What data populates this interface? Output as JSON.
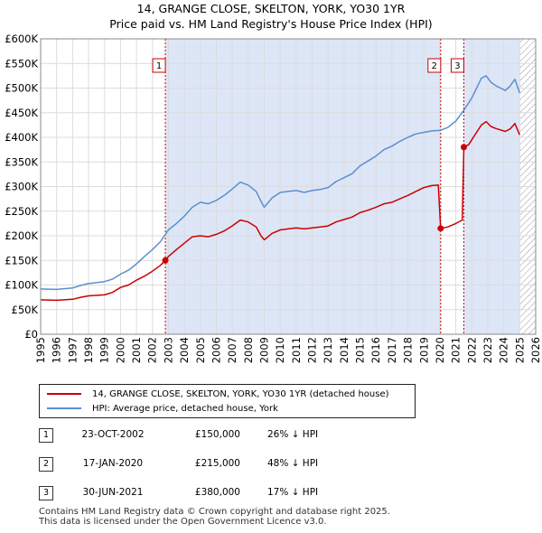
{
  "header": {
    "title": "14, GRANGE CLOSE, SKELTON, YORK, YO30 1YR",
    "subtitle": "Price paid vs. HM Land Registry's House Price Index (HPI)"
  },
  "colors": {
    "price_line": "#cc0000",
    "hpi_line": "#5b8fd0",
    "shade": "#dde6f7",
    "vline": "#cc0000"
  },
  "chart_data": {
    "type": "line",
    "title": "14, GRANGE CLOSE, SKELTON, YORK, YO30 1YR",
    "subtitle": "Price paid vs. HM Land Registry's House Price Index (HPI)",
    "xlim": [
      1995,
      2026
    ],
    "ylim": [
      0,
      600000
    ],
    "x_ticks": [
      "1995",
      "1996",
      "1997",
      "1998",
      "1999",
      "2000",
      "2001",
      "2002",
      "2003",
      "2004",
      "2005",
      "2006",
      "2007",
      "2008",
      "2009",
      "2010",
      "2011",
      "2012",
      "2013",
      "2014",
      "2015",
      "2016",
      "2017",
      "2018",
      "2019",
      "2020",
      "2021",
      "2022",
      "2023",
      "2024",
      "2025",
      "2026"
    ],
    "y_ticks": [
      {
        "value": 0,
        "label": "£0"
      },
      {
        "value": 50000,
        "label": "£50K"
      },
      {
        "value": 100000,
        "label": "£100K"
      },
      {
        "value": 150000,
        "label": "£150K"
      },
      {
        "value": 200000,
        "label": "£200K"
      },
      {
        "value": 250000,
        "label": "£250K"
      },
      {
        "value": 300000,
        "label": "£300K"
      },
      {
        "value": 350000,
        "label": "£350K"
      },
      {
        "value": 400000,
        "label": "£400K"
      },
      {
        "value": 450000,
        "label": "£450K"
      },
      {
        "value": 500000,
        "label": "£500K"
      },
      {
        "value": 550000,
        "label": "£550K"
      },
      {
        "value": 600000,
        "label": "£600K"
      }
    ],
    "shaded_ranges": [
      [
        2002.81,
        2020.05
      ],
      [
        2021.5,
        2025.0
      ]
    ],
    "hatched_range": [
      2025.0,
      2026.0
    ],
    "series": [
      {
        "name": "14, GRANGE CLOSE, SKELTON, YORK, YO30 1YR (detached house)",
        "color": "#cc0000",
        "points": [
          [
            1995.0,
            70000
          ],
          [
            1996.0,
            69000
          ],
          [
            1997.0,
            71000
          ],
          [
            1997.5,
            75000
          ],
          [
            1998.0,
            78000
          ],
          [
            1999.0,
            80000
          ],
          [
            1999.5,
            85000
          ],
          [
            2000.0,
            95000
          ],
          [
            2000.5,
            100000
          ],
          [
            2001.0,
            110000
          ],
          [
            2001.5,
            118000
          ],
          [
            2002.0,
            128000
          ],
          [
            2002.5,
            140000
          ],
          [
            2002.81,
            150000
          ],
          [
            2003.0,
            158000
          ],
          [
            2003.5,
            172000
          ],
          [
            2004.0,
            185000
          ],
          [
            2004.5,
            198000
          ],
          [
            2005.0,
            200000
          ],
          [
            2005.5,
            198000
          ],
          [
            2006.0,
            203000
          ],
          [
            2006.5,
            210000
          ],
          [
            2007.0,
            220000
          ],
          [
            2007.5,
            232000
          ],
          [
            2008.0,
            228000
          ],
          [
            2008.5,
            218000
          ],
          [
            2008.8,
            200000
          ],
          [
            2009.0,
            192000
          ],
          [
            2009.5,
            205000
          ],
          [
            2010.0,
            212000
          ],
          [
            2010.5,
            214000
          ],
          [
            2011.0,
            216000
          ],
          [
            2011.5,
            214000
          ],
          [
            2012.0,
            216000
          ],
          [
            2012.5,
            218000
          ],
          [
            2013.0,
            220000
          ],
          [
            2013.5,
            228000
          ],
          [
            2014.0,
            233000
          ],
          [
            2014.5,
            238000
          ],
          [
            2015.0,
            247000
          ],
          [
            2015.5,
            252000
          ],
          [
            2016.0,
            258000
          ],
          [
            2016.5,
            265000
          ],
          [
            2017.0,
            268000
          ],
          [
            2017.5,
            275000
          ],
          [
            2018.0,
            282000
          ],
          [
            2018.5,
            290000
          ],
          [
            2019.0,
            298000
          ],
          [
            2019.5,
            302000
          ],
          [
            2019.9,
            303000
          ],
          [
            2020.05,
            215000
          ],
          [
            2020.5,
            218000
          ],
          [
            2021.0,
            225000
          ],
          [
            2021.4,
            232000
          ],
          [
            2021.5,
            380000
          ],
          [
            2021.8,
            385000
          ],
          [
            2022.0,
            395000
          ],
          [
            2022.3,
            410000
          ],
          [
            2022.6,
            425000
          ],
          [
            2022.9,
            432000
          ],
          [
            2023.2,
            422000
          ],
          [
            2023.5,
            418000
          ],
          [
            2023.8,
            415000
          ],
          [
            2024.1,
            412000
          ],
          [
            2024.4,
            417000
          ],
          [
            2024.7,
            428000
          ],
          [
            2025.0,
            405000
          ]
        ]
      },
      {
        "name": "HPI: Average price, detached house, York",
        "color": "#5b8fd0",
        "points": [
          [
            1995.0,
            92000
          ],
          [
            1996.0,
            91000
          ],
          [
            1997.0,
            94000
          ],
          [
            1997.5,
            99000
          ],
          [
            1998.0,
            103000
          ],
          [
            1999.0,
            107000
          ],
          [
            1999.5,
            112000
          ],
          [
            2000.0,
            122000
          ],
          [
            2000.5,
            130000
          ],
          [
            2001.0,
            143000
          ],
          [
            2001.5,
            158000
          ],
          [
            2002.0,
            172000
          ],
          [
            2002.5,
            188000
          ],
          [
            2002.81,
            203000
          ],
          [
            2003.0,
            212000
          ],
          [
            2003.5,
            225000
          ],
          [
            2004.0,
            240000
          ],
          [
            2004.5,
            258000
          ],
          [
            2005.0,
            268000
          ],
          [
            2005.5,
            265000
          ],
          [
            2006.0,
            272000
          ],
          [
            2006.5,
            282000
          ],
          [
            2007.0,
            295000
          ],
          [
            2007.5,
            309000
          ],
          [
            2008.0,
            303000
          ],
          [
            2008.5,
            290000
          ],
          [
            2008.8,
            270000
          ],
          [
            2009.0,
            258000
          ],
          [
            2009.5,
            277000
          ],
          [
            2010.0,
            288000
          ],
          [
            2010.5,
            290000
          ],
          [
            2011.0,
            292000
          ],
          [
            2011.5,
            288000
          ],
          [
            2012.0,
            292000
          ],
          [
            2012.5,
            294000
          ],
          [
            2013.0,
            298000
          ],
          [
            2013.5,
            310000
          ],
          [
            2014.0,
            318000
          ],
          [
            2014.5,
            326000
          ],
          [
            2015.0,
            342000
          ],
          [
            2015.5,
            352000
          ],
          [
            2016.0,
            362000
          ],
          [
            2016.5,
            375000
          ],
          [
            2017.0,
            382000
          ],
          [
            2017.5,
            392000
          ],
          [
            2018.0,
            400000
          ],
          [
            2018.5,
            407000
          ],
          [
            2019.0,
            410000
          ],
          [
            2019.5,
            413000
          ],
          [
            2020.0,
            414000
          ],
          [
            2020.5,
            420000
          ],
          [
            2021.0,
            433000
          ],
          [
            2021.5,
            455000
          ],
          [
            2021.8,
            470000
          ],
          [
            2022.0,
            480000
          ],
          [
            2022.3,
            500000
          ],
          [
            2022.6,
            520000
          ],
          [
            2022.9,
            525000
          ],
          [
            2023.2,
            512000
          ],
          [
            2023.5,
            505000
          ],
          [
            2023.8,
            500000
          ],
          [
            2024.1,
            495000
          ],
          [
            2024.4,
            504000
          ],
          [
            2024.7,
            518000
          ],
          [
            2025.0,
            490000
          ]
        ]
      }
    ],
    "sale_markers": [
      {
        "label": "1",
        "x": 2002.81,
        "y": 150000
      },
      {
        "label": "2",
        "x": 2020.05,
        "y": 215000
      },
      {
        "label": "3",
        "x": 2021.5,
        "y": 380000
      }
    ]
  },
  "legend": {
    "price_label": "14, GRANGE CLOSE, SKELTON, YORK, YO30 1YR (detached house)",
    "hpi_label": "HPI: Average price, detached house, York"
  },
  "sales": [
    {
      "num": "1",
      "date": "23-OCT-2002",
      "price": "£150,000",
      "pct": "26% ↓ HPI"
    },
    {
      "num": "2",
      "date": "17-JAN-2020",
      "price": "£215,000",
      "pct": "48% ↓ HPI"
    },
    {
      "num": "3",
      "date": "30-JUN-2021",
      "price": "£380,000",
      "pct": "17% ↓ HPI"
    }
  ],
  "footer": {
    "line1": "Contains HM Land Registry data © Crown copyright and database right 2025.",
    "line2": "This data is licensed under the Open Government Licence v3.0."
  }
}
